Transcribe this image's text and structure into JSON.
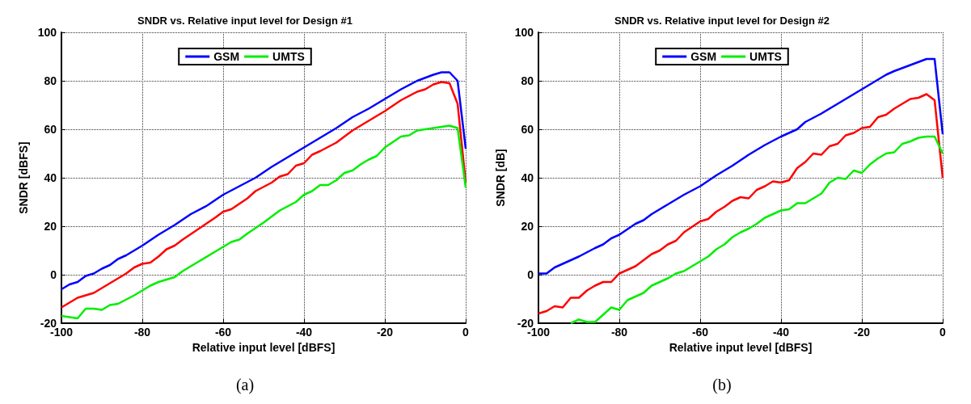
{
  "chart_data": [
    {
      "type": "line",
      "title": "SNDR vs. Relative input level for Design #1",
      "xlabel": "Relative input level [dBFS]",
      "ylabel": "SNDR [dBFS]",
      "xlim": [
        -100,
        0
      ],
      "xticks": [
        -100,
        -80,
        -60,
        -40,
        -20,
        0
      ],
      "ylim": [
        -20,
        100
      ],
      "yticks": [
        -20,
        0,
        20,
        40,
        60,
        80,
        100
      ],
      "grid": true,
      "legend": "top",
      "marker": "none",
      "line_style": "solid",
      "annotations": [
        "(a)"
      ],
      "series": [
        {
          "name": "GSM",
          "color": "#0000ff",
          "x": [
            -100,
            -98,
            -96,
            -94,
            -92,
            -90,
            -88,
            -86,
            -84,
            -80,
            -76,
            -72,
            -68,
            -64,
            -60,
            -56,
            -52,
            -48,
            -44,
            -40,
            -36,
            -32,
            -28,
            -24,
            -20,
            -16,
            -12,
            -8,
            -6,
            -4,
            -2,
            0
          ],
          "values": [
            -6,
            -4,
            -3,
            -0.5,
            0.5,
            2.5,
            4,
            6.5,
            8,
            12,
            16.5,
            20.5,
            25,
            28.5,
            33,
            36.5,
            40,
            44.5,
            48.5,
            52.5,
            56.5,
            60.5,
            65,
            68.5,
            72.5,
            76.5,
            80,
            82.5,
            83.5,
            83.5,
            80,
            52
          ]
        },
        {
          "color": "#ff0000",
          "x": [
            -100,
            -96,
            -92,
            -88,
            -84,
            -82,
            -80,
            -78,
            -76,
            -74,
            -72,
            -70,
            -66,
            -62,
            -60,
            -58,
            -54,
            -52,
            -48,
            -46,
            -44,
            -42,
            -40,
            -38,
            -36,
            -32,
            -28,
            -24,
            -20,
            -16,
            -12,
            -10,
            -8,
            -6,
            -4,
            -2,
            0
          ],
          "values": [
            -13.5,
            -9.5,
            -7.5,
            -3.5,
            0.5,
            3,
            4.5,
            5,
            7.5,
            10.5,
            12,
            14.5,
            19,
            23.5,
            26,
            27,
            31.5,
            34.5,
            38,
            40.5,
            41.5,
            45,
            46,
            49.5,
            51,
            54.5,
            59.5,
            63.5,
            67.5,
            72,
            75.5,
            76.5,
            78.5,
            79.5,
            79,
            70.5,
            38
          ]
        },
        {
          "name": "UMTS",
          "color": "#00ee00",
          "x": [
            -100,
            -98,
            -96,
            -94,
            -92,
            -90,
            -88,
            -86,
            -82,
            -80,
            -78,
            -76,
            -74,
            -72,
            -70,
            -66,
            -62,
            -58,
            -56,
            -54,
            -50,
            -46,
            -42,
            -40,
            -38,
            -36,
            -34,
            -32,
            -30,
            -28,
            -26,
            -24,
            -22,
            -20,
            -16,
            -14,
            -12,
            -8,
            -6,
            -4,
            -2,
            0
          ],
          "values": [
            -17,
            -17.5,
            -18,
            -14,
            -14,
            -14.5,
            -12.5,
            -12,
            -8.5,
            -6.5,
            -4.5,
            -3,
            -2,
            -1,
            1.5,
            5.5,
            9.5,
            13.5,
            14.5,
            17,
            21.5,
            26.5,
            30,
            33,
            34.5,
            37,
            37,
            39,
            42,
            43,
            45.5,
            47.5,
            49,
            52.5,
            57,
            57.5,
            59.5,
            60.5,
            61,
            61.5,
            60.5,
            36
          ]
        }
      ]
    },
    {
      "type": "line",
      "title": "SNDR vs. Relative input level for Design #2",
      "xlabel": "Relative input level [dBFS]",
      "ylabel": "SNDR [dB]",
      "xlim": [
        -100,
        0
      ],
      "xticks": [
        -100,
        -80,
        -60,
        -40,
        -20,
        0
      ],
      "ylim": [
        -20,
        100
      ],
      "yticks": [
        -20,
        0,
        20,
        40,
        60,
        80,
        100
      ],
      "grid": true,
      "legend": "top",
      "marker": "none",
      "line_style": "solid",
      "annotations": [
        "(b)"
      ],
      "series": [
        {
          "name": "GSM",
          "color": "#0000ff",
          "x": [
            -100,
            -98,
            -96,
            -94,
            -90,
            -86,
            -84,
            -82,
            -80,
            -76,
            -74,
            -72,
            -68,
            -64,
            -60,
            -56,
            -52,
            -48,
            -44,
            -40,
            -36,
            -34,
            -30,
            -26,
            -22,
            -20,
            -16,
            -14,
            -12,
            -8,
            -4,
            -2,
            0
          ],
          "values": [
            0.5,
            0.5,
            3,
            4.5,
            7.5,
            11,
            12.5,
            15,
            16.5,
            21,
            22.5,
            25,
            29,
            33,
            36.5,
            41,
            45,
            49.5,
            53.5,
            57,
            60,
            63,
            66.5,
            70.5,
            74.5,
            76.5,
            80.5,
            82.5,
            84,
            86.5,
            89,
            89,
            58
          ]
        },
        {
          "color": "#ff0000",
          "x": [
            -100,
            -98,
            -96,
            -94,
            -92,
            -90,
            -88,
            -86,
            -84,
            -82,
            -80,
            -76,
            -74,
            -72,
            -70,
            -68,
            -66,
            -64,
            -60,
            -58,
            -56,
            -54,
            -52,
            -50,
            -48,
            -46,
            -44,
            -42,
            -40,
            -38,
            -36,
            -34,
            -32,
            -30,
            -28,
            -26,
            -24,
            -22,
            -20,
            -18,
            -16,
            -14,
            -12,
            -8,
            -6,
            -4,
            -2,
            0
          ],
          "values": [
            -16,
            -15,
            -13,
            -13.5,
            -9.5,
            -9.5,
            -6.5,
            -4.5,
            -3,
            -3,
            0.5,
            3.5,
            6,
            8.5,
            10,
            12.5,
            14,
            17.5,
            22,
            23,
            26,
            28,
            30.5,
            32,
            31.5,
            35,
            36.5,
            38.5,
            38,
            39,
            44,
            46.5,
            50,
            49.5,
            53,
            54,
            57.5,
            58.5,
            60.5,
            61,
            65,
            66,
            68.5,
            72.5,
            73,
            74.5,
            72,
            40
          ]
        },
        {
          "name": "UMTS",
          "color": "#00ee00",
          "x": [
            -92,
            -90,
            -88,
            -86,
            -84,
            -82,
            -80,
            -78,
            -74,
            -72,
            -68,
            -66,
            -64,
            -60,
            -58,
            -56,
            -54,
            -52,
            -50,
            -48,
            -46,
            -44,
            -42,
            -40,
            -38,
            -36,
            -34,
            -30,
            -28,
            -26,
            -24,
            -22,
            -20,
            -18,
            -16,
            -14,
            -12,
            -10,
            -8,
            -6,
            -4,
            -2,
            0
          ],
          "values": [
            -20,
            -18.5,
            -19.5,
            -19.5,
            -16.5,
            -13.5,
            -14.5,
            -10.5,
            -7.5,
            -4.5,
            -1.5,
            0.5,
            1.5,
            5.5,
            7.5,
            10.5,
            12.5,
            15.5,
            17.5,
            19,
            21,
            23.5,
            25,
            26.5,
            27,
            29.5,
            29.5,
            33.5,
            38,
            40,
            39.5,
            43,
            42,
            45.5,
            48,
            50,
            50.5,
            54,
            55,
            56.5,
            57,
            57,
            50
          ]
        }
      ]
    }
  ]
}
